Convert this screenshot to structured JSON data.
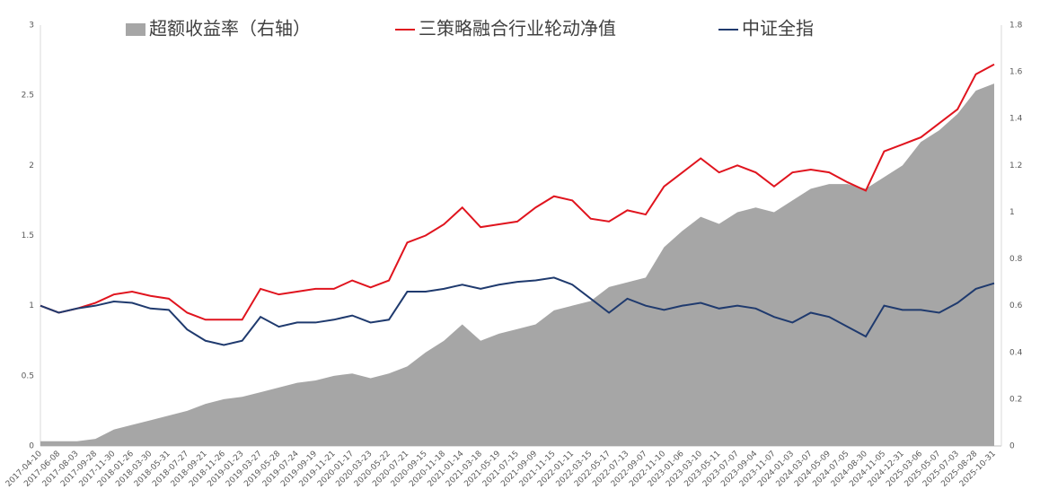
{
  "chart_data": {
    "type": "line",
    "categories": [
      "2017-04-10",
      "2017-06-08",
      "2017-08-03",
      "2017-09-28",
      "2017-11-30",
      "2018-01-26",
      "2018-03-30",
      "2018-05-31",
      "2018-07-27",
      "2018-09-21",
      "2018-11-26",
      "2019-01-23",
      "2019-03-27",
      "2019-05-28",
      "2019-07-24",
      "2019-09-19",
      "2019-11-21",
      "2020-01-17",
      "2020-03-23",
      "2020-05-22",
      "2020-07-21",
      "2020-09-15",
      "2020-11-18",
      "2021-01-14",
      "2021-03-18",
      "2021-05-19",
      "2021-07-15",
      "2021-09-09",
      "2021-11-15",
      "2022-01-11",
      "2022-03-15",
      "2022-05-17",
      "2022-07-13",
      "2022-09-07",
      "2022-11-10",
      "2023-01-06",
      "2023-03-10",
      "2023-05-11",
      "2023-07-07",
      "2023-09-04",
      "2023-11-07",
      "2024-01-03",
      "2024-03-07",
      "2024-05-09",
      "2024-07-05",
      "2024-08-30",
      "2024-11-05",
      "2024-12-31",
      "2025-03-06",
      "2025-05-07",
      "2025-07-03",
      "2025-08-28",
      "2025-10-31"
    ],
    "series": [
      {
        "name": "超额收益率（右轴）",
        "type": "area",
        "axis": "y2",
        "color": "#a6a6a6",
        "values": [
          0.02,
          0.02,
          0.02,
          0.03,
          0.07,
          0.09,
          0.11,
          0.13,
          0.15,
          0.18,
          0.2,
          0.21,
          0.23,
          0.25,
          0.27,
          0.28,
          0.3,
          0.31,
          0.29,
          0.31,
          0.34,
          0.4,
          0.45,
          0.52,
          0.45,
          0.48,
          0.5,
          0.52,
          0.58,
          0.6,
          0.62,
          0.68,
          0.7,
          0.72,
          0.85,
          0.92,
          0.98,
          0.95,
          1.0,
          1.02,
          1.0,
          1.05,
          1.1,
          1.12,
          1.12,
          1.1,
          1.15,
          1.2,
          1.3,
          1.35,
          1.42,
          1.52,
          1.55
        ]
      },
      {
        "name": "三策略融合行业轮动净值",
        "type": "line",
        "color": "#e0141e",
        "values": [
          1.0,
          0.95,
          0.98,
          1.02,
          1.08,
          1.1,
          1.07,
          1.05,
          0.95,
          0.9,
          0.9,
          0.9,
          1.12,
          1.08,
          1.1,
          1.12,
          1.12,
          1.18,
          1.13,
          1.18,
          1.45,
          1.5,
          1.58,
          1.7,
          1.56,
          1.58,
          1.6,
          1.7,
          1.78,
          1.75,
          1.62,
          1.6,
          1.68,
          1.65,
          1.85,
          1.95,
          2.05,
          1.95,
          2.0,
          1.95,
          1.85,
          1.95,
          1.97,
          1.95,
          1.88,
          1.82,
          2.1,
          2.15,
          2.2,
          2.3,
          2.4,
          2.65,
          2.72
        ]
      },
      {
        "name": "中证全指",
        "type": "line",
        "color": "#1f3a6e",
        "values": [
          1.0,
          0.95,
          0.98,
          1.0,
          1.03,
          1.02,
          0.98,
          0.97,
          0.83,
          0.75,
          0.72,
          0.75,
          0.92,
          0.85,
          0.88,
          0.88,
          0.9,
          0.93,
          0.88,
          0.9,
          1.1,
          1.1,
          1.12,
          1.15,
          1.12,
          1.15,
          1.17,
          1.18,
          1.2,
          1.15,
          1.05,
          0.95,
          1.05,
          1.0,
          0.97,
          1.0,
          1.02,
          0.98,
          1.0,
          0.98,
          0.92,
          0.88,
          0.95,
          0.92,
          0.85,
          0.78,
          1.0,
          0.97,
          0.97,
          0.95,
          1.02,
          1.12,
          1.16
        ]
      }
    ],
    "ylim": [
      0,
      3
    ],
    "yticks": [
      0,
      0.5,
      1,
      1.5,
      2,
      2.5,
      3
    ],
    "y2lim": [
      0,
      1.8
    ],
    "y2ticks": [
      0,
      0.2,
      0.4,
      0.6,
      0.8,
      1,
      1.2,
      1.4,
      1.6,
      1.8
    ],
    "legend": "top"
  }
}
